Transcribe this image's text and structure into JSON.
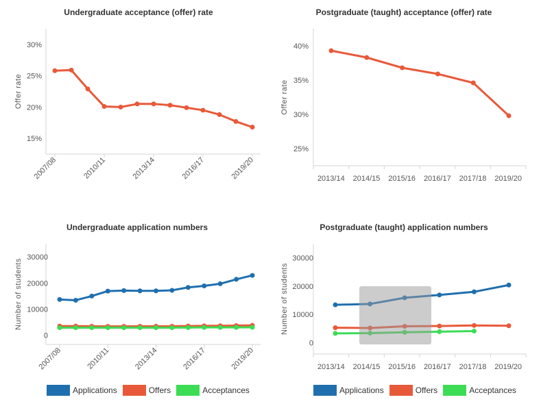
{
  "chart_data": [
    {
      "type": "line",
      "title": "Undergraduate acceptance (offer) rate",
      "xlabel": "",
      "ylabel": "Offer rate",
      "x": [
        "2007/08",
        "2008/09",
        "2009/10",
        "2010/11",
        "2011/12",
        "2012/13",
        "2013/14",
        "2014/15",
        "2015/16",
        "2016/17",
        "2017/18",
        "2018/19",
        "2019/20"
      ],
      "tick_labels": [
        "2007/08",
        "2010/11",
        "2013/14",
        "2016/17",
        "2019/20"
      ],
      "yticks": [
        "15%",
        "20%",
        "25%",
        "30%"
      ],
      "ylim": [
        12.5,
        32.5
      ],
      "series": [
        {
          "name": "Offer rate",
          "color": "#e8593a",
          "values": [
            25.8,
            25.9,
            22.9,
            20.1,
            20.0,
            20.5,
            20.5,
            20.3,
            19.9,
            19.5,
            18.8,
            17.7,
            16.8
          ]
        }
      ]
    },
    {
      "type": "line",
      "title": "Postgraduate (taught) acceptance (offer) rate",
      "xlabel": "",
      "ylabel": "Offer rate",
      "x": [
        "2013/14",
        "2014/15",
        "2015/16",
        "2016/17",
        "2017/18",
        "2019/20"
      ],
      "tick_labels": [
        "2013/14",
        "2014/15",
        "2015/16",
        "2016/17",
        "2017/18",
        "2019/20"
      ],
      "yticks": [
        "25%",
        "30%",
        "35%",
        "40%"
      ],
      "ylim": [
        22.5,
        42.5
      ],
      "series": [
        {
          "name": "Offer rate",
          "color": "#e8593a",
          "values": [
            39.3,
            38.3,
            36.8,
            35.9,
            34.6,
            29.8
          ]
        }
      ]
    },
    {
      "type": "line",
      "title": "Undergraduate application numbers",
      "xlabel": "",
      "ylabel": "Number of students",
      "x": [
        "2007/08",
        "2008/09",
        "2009/10",
        "2010/11",
        "2011/12",
        "2012/13",
        "2013/14",
        "2014/15",
        "2015/16",
        "2016/17",
        "2017/18",
        "2018/19",
        "2019/20"
      ],
      "tick_labels": [
        "2007/08",
        "2010/11",
        "2013/14",
        "2016/17",
        "2019/20"
      ],
      "yticks": [
        "0",
        "10000",
        "20000",
        "30000"
      ],
      "ylim": [
        -3500,
        35000
      ],
      "series": [
        {
          "name": "Applications",
          "color": "#1f6fae",
          "values": [
            13700,
            13400,
            15000,
            16900,
            17100,
            17000,
            17000,
            17200,
            18300,
            18900,
            19700,
            21400,
            22900
          ]
        },
        {
          "name": "Offers",
          "color": "#e8593a",
          "values": [
            3500,
            3500,
            3450,
            3400,
            3400,
            3450,
            3450,
            3450,
            3550,
            3600,
            3650,
            3700,
            3800
          ]
        },
        {
          "name": "Acceptances",
          "color": "#3ddc55",
          "values": [
            2900,
            2900,
            2900,
            2900,
            2900,
            2900,
            2900,
            2900,
            2950,
            3000,
            3000,
            3000,
            3050
          ]
        }
      ]
    },
    {
      "type": "line",
      "title": "Postgraduate (taught) application numbers",
      "xlabel": "",
      "ylabel": "Number of students",
      "x": [
        "2013/14",
        "2014/15",
        "2015/16",
        "2016/17",
        "2017/18",
        "2019/20"
      ],
      "tick_labels": [
        "2013/14",
        "2014/15",
        "2015/16",
        "2016/17",
        "2017/18",
        "2019/20"
      ],
      "yticks": [
        "0",
        "10000",
        "20000",
        "30000"
      ],
      "ylim": [
        -4000,
        35000
      ],
      "series": [
        {
          "name": "Applications",
          "color": "#1f6fae",
          "values": [
            13400,
            13700,
            15900,
            16900,
            18000,
            20400
          ]
        },
        {
          "name": "Offers",
          "color": "#e8593a",
          "values": [
            5300,
            5200,
            5800,
            5900,
            6100,
            6000
          ]
        },
        {
          "name": "Acceptances",
          "color": "#3ddc55",
          "values": [
            3300,
            3400,
            3700,
            3900,
            4100,
            null
          ]
        }
      ]
    }
  ],
  "legend": {
    "applications": "Applications",
    "offers": "Offers",
    "acceptances": "Acceptances",
    "applications_color": "#1f6fae",
    "offers_color": "#e8593a",
    "acceptances_color": "#3ddc55"
  }
}
